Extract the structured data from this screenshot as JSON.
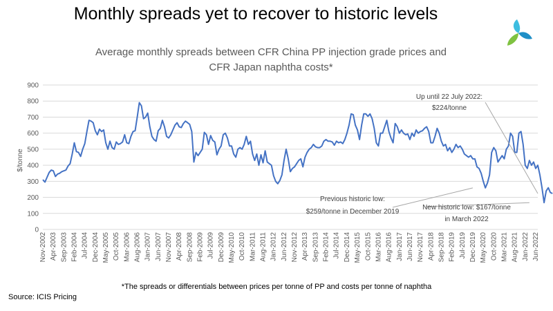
{
  "headline": "Monthly spreads yet to recover to historic levels",
  "footnote": "*The spreads or differentials between prices per tonne of PP and costs per tonne of naphtha",
  "source": "Source: ICIS Pricing",
  "logo": {
    "icon": "icis-logo-icon",
    "colors": [
      "#3dbde0",
      "#7fc241",
      "#1f8fc7"
    ]
  },
  "chart_data": {
    "type": "line",
    "title": "Average monthly spreads between CFR China PP injection grade prices and CFR Japan naphtha costs*",
    "title_lines": [
      "Average monthly spreads between CFR China PP injection grade prices and",
      "CFR Japan naphtha costs*"
    ],
    "ylabel": "$/tonne",
    "xlabel": "",
    "ylim": [
      0,
      900
    ],
    "yticks": [
      0,
      100,
      200,
      300,
      400,
      500,
      600,
      700,
      800,
      900
    ],
    "grid": true,
    "legend": "none",
    "x_start": "Nov-2002",
    "x_end": "Jul-2022",
    "xtick_labels": [
      "Nov-2002",
      "Apr-2003",
      "Sep-2003",
      "Feb-2004",
      "Jul-2004",
      "Dec-2004",
      "May-2005",
      "Oct-2005",
      "Mar-2006",
      "Aug-2006",
      "Jan-2007",
      "Jun-2007",
      "Nov-2007",
      "Apr-2008",
      "Sep-2008",
      "Feb-2009",
      "Jul-2009",
      "Dec-2009",
      "May-2010",
      "Oct-2010",
      "Mar-2011",
      "Aug-2011",
      "Jan-2012",
      "Jun-2012",
      "Nov-2012",
      "Apr-2013",
      "Sep-2013",
      "Feb-2014",
      "Jul-2014",
      "Dec-2014",
      "May-2015",
      "Oct-2015",
      "Mar-2016",
      "Aug-2016",
      "Jan-2017",
      "Jun-2017",
      "Nov-2017",
      "Apr-2018",
      "Sep-2018",
      "Feb-2019",
      "Jul-2019",
      "Dec-2019",
      "May-2020",
      "Oct-2020",
      "Mar-2021",
      "Aug-2021",
      "Jan-2022",
      "Jun-2022"
    ],
    "series": [
      {
        "color": "#4472c4",
        "values": [
          310,
          295,
          325,
          355,
          370,
          365,
          330,
          345,
          350,
          360,
          365,
          370,
          395,
          410,
          470,
          540,
          485,
          480,
          455,
          500,
          535,
          610,
          680,
          675,
          665,
          615,
          590,
          625,
          610,
          620,
          540,
          500,
          550,
          510,
          500,
          545,
          530,
          535,
          545,
          590,
          540,
          535,
          580,
          610,
          615,
          700,
          790,
          770,
          690,
          700,
          725,
          640,
          580,
          560,
          550,
          615,
          630,
          680,
          640,
          580,
          570,
          590,
          620,
          650,
          665,
          640,
          635,
          660,
          675,
          665,
          655,
          610,
          420,
          480,
          460,
          480,
          500,
          605,
          590,
          530,
          585,
          555,
          545,
          465,
          500,
          520,
          590,
          600,
          570,
          520,
          520,
          470,
          450,
          500,
          510,
          500,
          530,
          580,
          530,
          550,
          470,
          430,
          470,
          400,
          465,
          415,
          490,
          420,
          410,
          400,
          335,
          300,
          285,
          305,
          340,
          430,
          500,
          440,
          360,
          380,
          390,
          410,
          430,
          440,
          390,
          450,
          480,
          500,
          510,
          530,
          515,
          510,
          510,
          520,
          550,
          560,
          550,
          550,
          545,
          525,
          550,
          540,
          545,
          535,
          560,
          600,
          650,
          720,
          715,
          650,
          620,
          560,
          650,
          720,
          720,
          705,
          720,
          690,
          630,
          540,
          520,
          600,
          600,
          640,
          680,
          610,
          570,
          540,
          660,
          640,
          600,
          620,
          600,
          590,
          595,
          560,
          600,
          580,
          620,
          600,
          610,
          615,
          630,
          640,
          610,
          540,
          540,
          580,
          630,
          600,
          550,
          520,
          530,
          490,
          510,
          480,
          500,
          530,
          510,
          520,
          500,
          470,
          460,
          450,
          460,
          440,
          440,
          390,
          380,
          350,
          300,
          259,
          290,
          340,
          480,
          510,
          490,
          420,
          440,
          460,
          440,
          500,
          520,
          600,
          580,
          480,
          480,
          600,
          610,
          530,
          400,
          380,
          430,
          400,
          420,
          380,
          400,
          340,
          260,
          167,
          240,
          260,
          230,
          224
        ]
      }
    ],
    "annotations": [
      {
        "lines": [
          "Up until 22 July 2022:",
          "$224/tonne"
        ],
        "x": "Jul-2022",
        "y": 224
      },
      {
        "lines": [
          "Previous historic low:",
          "$259/tonne in December  2019"
        ],
        "x": "Dec-2019",
        "y": 259
      },
      {
        "lines": [
          "New historic low: $167/tonne",
          "in March 2022"
        ],
        "x": "Mar-2022",
        "y": 167
      }
    ]
  }
}
